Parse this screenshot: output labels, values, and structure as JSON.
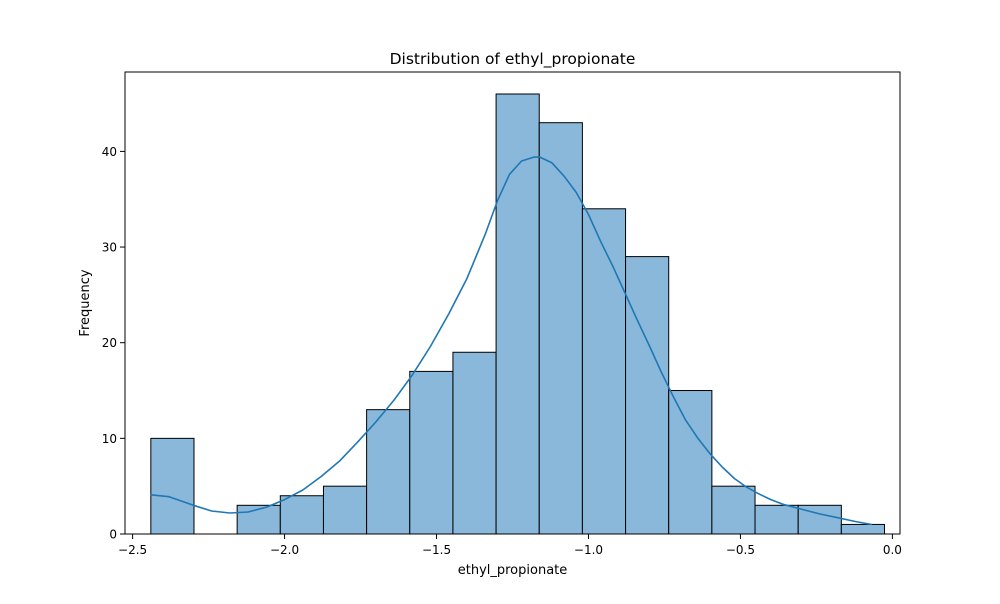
{
  "chart_data": {
    "type": "bar",
    "title": "Distribution of ethyl_propionate",
    "xlabel": "ethyl_propionate",
    "ylabel": "Frequency",
    "xlim": [
      -2.525,
      0.025
    ],
    "ylim": [
      0,
      48.3
    ],
    "x_ticks": [
      -2.5,
      -2.0,
      -1.5,
      -1.0,
      -0.5,
      0.0
    ],
    "x_tick_labels": [
      "−2.5",
      "−2.0",
      "−1.5",
      "−1.0",
      "−0.5",
      "0.0"
    ],
    "y_ticks": [
      0,
      10,
      20,
      30,
      40
    ],
    "y_tick_labels": [
      "0",
      "10",
      "20",
      "30",
      "40"
    ],
    "bin_edges": [
      -2.44,
      -2.298,
      -2.156,
      -2.014,
      -1.872,
      -1.73,
      -1.588,
      -1.446,
      -1.304,
      -1.162,
      -1.02,
      -0.878,
      -0.736,
      -0.594,
      -0.452,
      -0.31,
      -0.168,
      -0.026
    ],
    "values": [
      10,
      0,
      3,
      4,
      5,
      13,
      17,
      19,
      46,
      43,
      34,
      29,
      15,
      5,
      3,
      3,
      1
    ],
    "kde": {
      "x": [
        -2.44,
        -2.38,
        -2.3,
        -2.24,
        -2.18,
        -2.12,
        -2.06,
        -2.0,
        -1.94,
        -1.88,
        -1.82,
        -1.76,
        -1.7,
        -1.64,
        -1.58,
        -1.52,
        -1.46,
        -1.4,
        -1.34,
        -1.3,
        -1.26,
        -1.22,
        -1.18,
        -1.16,
        -1.12,
        -1.08,
        -1.04,
        -1.0,
        -0.96,
        -0.92,
        -0.88,
        -0.84,
        -0.8,
        -0.76,
        -0.72,
        -0.68,
        -0.64,
        -0.6,
        -0.56,
        -0.52,
        -0.48,
        -0.44,
        -0.4,
        -0.36,
        -0.3,
        -0.24,
        -0.18,
        -0.12,
        -0.07
      ],
      "y": [
        4.1,
        3.9,
        3.0,
        2.4,
        2.2,
        2.3,
        2.8,
        3.6,
        4.6,
        6.0,
        7.6,
        9.6,
        11.7,
        14.0,
        16.6,
        19.6,
        23.0,
        26.7,
        31.3,
        34.8,
        37.6,
        39.0,
        39.4,
        39.4,
        38.8,
        37.4,
        35.7,
        33.4,
        30.6,
        28.0,
        25.2,
        22.4,
        19.7,
        16.9,
        14.3,
        11.9,
        10.0,
        8.4,
        7.0,
        5.8,
        4.9,
        4.2,
        3.6,
        3.1,
        2.6,
        2.1,
        1.7,
        1.3,
        1.0
      ]
    },
    "bar_color": "#8ab8db",
    "bar_edge_color": "#000000",
    "kde_color": "#1f77b4",
    "grid": false,
    "legend": "none"
  }
}
